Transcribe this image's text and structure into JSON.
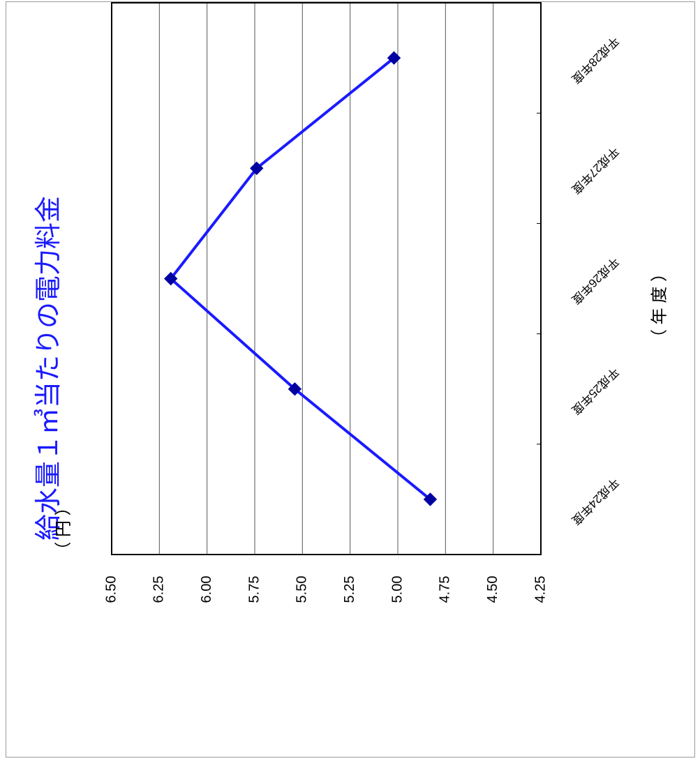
{
  "chart_data": {
    "type": "line",
    "title": "給水量１㎥当たりの電力料金",
    "xlabel": "（ 年 度 ）",
    "ylabel": "（ 円 ）",
    "categories": [
      "平成24年度",
      "平成25年度",
      "平成26年度",
      "平成27年度",
      "平成28年度"
    ],
    "values": [
      4.83,
      5.54,
      6.19,
      5.74,
      5.02
    ],
    "ylim": [
      4.25,
      6.5
    ],
    "yticks": [
      "6.50",
      "6.25",
      "6.00",
      "5.75",
      "5.50",
      "5.25",
      "5.00",
      "4.75",
      "4.50",
      "4.25"
    ],
    "grid": true,
    "legend": "none",
    "colors": {
      "series": "#1a1aff",
      "marker": "#0000a0",
      "title": "#1a1aff"
    }
  }
}
